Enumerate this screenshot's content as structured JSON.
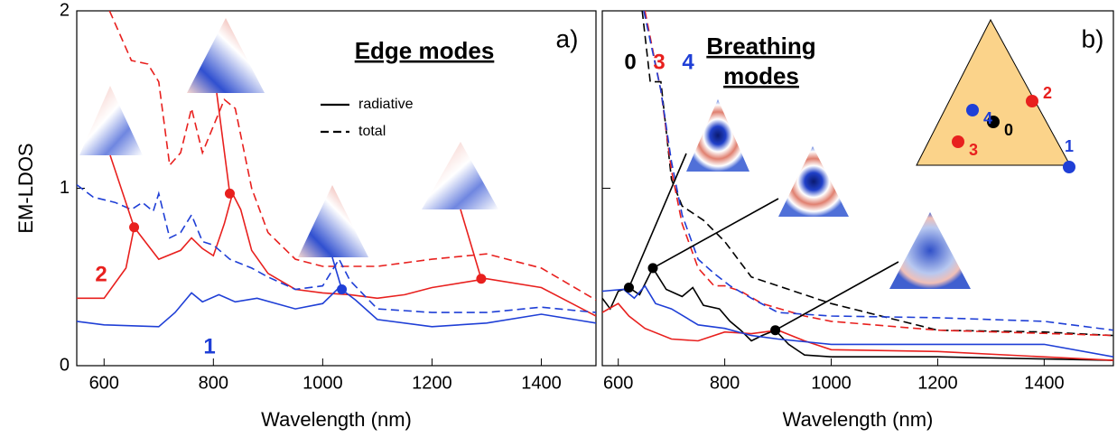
{
  "chart_data": [
    {
      "type": "line",
      "panel_label": "a)",
      "title": "Edge modes",
      "y_label": "EM-LDOS",
      "x_label": "Wavelength (nm)",
      "xlim": [
        550,
        1500
      ],
      "xticks": [
        600,
        800,
        1000,
        1200,
        1400
      ],
      "ylim": [
        0,
        2
      ],
      "yticks": [
        0,
        1,
        2
      ],
      "legend": [
        {
          "label": "radiative",
          "dash": "solid"
        },
        {
          "label": "total",
          "dash": "dashed"
        }
      ],
      "series": [
        {
          "color": "#e8201e",
          "dash": "solid",
          "x": [
            550,
            600,
            640,
            655,
            670,
            700,
            740,
            760,
            780,
            800,
            820,
            835,
            850,
            870,
            900,
            950,
            1000,
            1050,
            1100,
            1150,
            1200,
            1300,
            1400,
            1500
          ],
          "values": [
            0.38,
            0.38,
            0.55,
            0.78,
            0.72,
            0.6,
            0.65,
            0.72,
            0.66,
            0.62,
            0.8,
            0.97,
            0.88,
            0.65,
            0.52,
            0.43,
            0.41,
            0.4,
            0.38,
            0.4,
            0.44,
            0.49,
            0.44,
            0.28
          ]
        },
        {
          "color": "#e8201e",
          "dash": "dashed",
          "x": [
            610,
            650,
            680,
            700,
            720,
            740,
            760,
            780,
            800,
            820,
            840,
            870,
            900,
            950,
            1000,
            1050,
            1100,
            1200,
            1300,
            1400,
            1500
          ],
          "values": [
            2.0,
            1.72,
            1.7,
            1.6,
            1.13,
            1.2,
            1.45,
            1.2,
            1.35,
            1.5,
            1.45,
            1.0,
            0.75,
            0.6,
            0.56,
            0.56,
            0.56,
            0.6,
            0.63,
            0.55,
            0.37
          ]
        },
        {
          "color": "#1f3fd6",
          "dash": "dashed",
          "x": [
            550,
            580,
            620,
            650,
            670,
            690,
            700,
            720,
            740,
            760,
            780,
            800,
            830,
            870,
            900,
            950,
            1000,
            1030,
            1050,
            1100,
            1200,
            1300,
            1400,
            1500
          ],
          "values": [
            1.02,
            0.95,
            0.92,
            0.88,
            0.92,
            0.87,
            0.97,
            0.72,
            0.75,
            0.85,
            0.7,
            0.68,
            0.6,
            0.55,
            0.5,
            0.43,
            0.45,
            0.6,
            0.48,
            0.32,
            0.3,
            0.3,
            0.33,
            0.3
          ]
        },
        {
          "color": "#1f3fd6",
          "dash": "solid",
          "x": [
            550,
            600,
            700,
            730,
            760,
            780,
            810,
            840,
            880,
            950,
            1000,
            1030,
            1060,
            1100,
            1200,
            1300,
            1400,
            1500
          ],
          "values": [
            0.25,
            0.23,
            0.22,
            0.3,
            0.41,
            0.36,
            0.4,
            0.36,
            0.38,
            0.32,
            0.35,
            0.44,
            0.37,
            0.26,
            0.22,
            0.24,
            0.29,
            0.24
          ]
        }
      ],
      "curve_labels": [
        {
          "text": "2",
          "color": "#e8201e"
        },
        {
          "text": "1",
          "color": "#1f3fd6"
        }
      ],
      "markers": [
        {
          "x": 655,
          "y": 0.78,
          "color": "#e8201e"
        },
        {
          "x": 830,
          "y": 0.97,
          "color": "#e8201e"
        },
        {
          "x": 1290,
          "y": 0.49,
          "color": "#e8201e"
        },
        {
          "x": 1035,
          "y": 0.43,
          "color": "#1f3fd6"
        }
      ]
    },
    {
      "type": "line",
      "panel_label": "b)",
      "title": "Breathing",
      "subtitle": "modes",
      "x_label": "Wavelength (nm)",
      "xlim": [
        570,
        1530
      ],
      "xticks": [
        600,
        800,
        1000,
        1200,
        1400
      ],
      "ylim": [
        0,
        2
      ],
      "yticks": [
        0,
        1,
        2
      ],
      "series": [
        {
          "color": "#000000",
          "dash": "solid",
          "x": [
            570,
            585,
            600,
            620,
            640,
            665,
            690,
            720,
            740,
            760,
            790,
            810,
            830,
            850,
            870,
            895,
            920,
            950,
            1000,
            1200,
            1530
          ],
          "values": [
            0.38,
            0.32,
            0.42,
            0.44,
            0.4,
            0.55,
            0.43,
            0.39,
            0.44,
            0.34,
            0.32,
            0.25,
            0.2,
            0.14,
            0.17,
            0.2,
            0.12,
            0.06,
            0.05,
            0.05,
            0.03
          ]
        },
        {
          "color": "#e8201e",
          "dash": "solid",
          "x": [
            570,
            600,
            620,
            650,
            700,
            750,
            800,
            850,
            900,
            950,
            1000,
            1200,
            1530
          ],
          "values": [
            0.3,
            0.35,
            0.28,
            0.21,
            0.15,
            0.14,
            0.19,
            0.18,
            0.2,
            0.14,
            0.09,
            0.08,
            0.03
          ]
        },
        {
          "color": "#1f3fd6",
          "dash": "solid",
          "x": [
            570,
            610,
            630,
            650,
            670,
            700,
            750,
            800,
            850,
            900,
            1000,
            1200,
            1400,
            1530
          ],
          "values": [
            0.42,
            0.43,
            0.38,
            0.45,
            0.35,
            0.32,
            0.23,
            0.21,
            0.17,
            0.15,
            0.12,
            0.12,
            0.12,
            0.05
          ]
        },
        {
          "color": "#000000",
          "dash": "dashed",
          "x": [
            645,
            660,
            680,
            700,
            720,
            760,
            800,
            850,
            900,
            1000,
            1200,
            1400,
            1530
          ],
          "values": [
            2.0,
            1.6,
            1.6,
            1.05,
            0.9,
            0.82,
            0.7,
            0.5,
            0.45,
            0.35,
            0.2,
            0.19,
            0.17
          ]
        },
        {
          "color": "#e8201e",
          "dash": "dashed",
          "x": [
            650,
            680,
            700,
            720,
            750,
            780,
            800,
            830,
            870,
            950,
            1000,
            1200,
            1530
          ],
          "values": [
            2.0,
            1.55,
            1.1,
            0.8,
            0.55,
            0.45,
            0.45,
            0.42,
            0.35,
            0.28,
            0.25,
            0.2,
            0.17
          ]
        },
        {
          "color": "#1f3fd6",
          "dash": "dashed",
          "x": [
            648,
            680,
            700,
            720,
            750,
            780,
            810,
            850,
            900,
            1000,
            1200,
            1400,
            1530
          ],
          "values": [
            2.0,
            1.55,
            1.15,
            0.85,
            0.6,
            0.52,
            0.45,
            0.38,
            0.3,
            0.28,
            0.27,
            0.25,
            0.2
          ]
        }
      ],
      "curve_labels": [
        {
          "text": "0",
          "color": "#000000"
        },
        {
          "text": "3",
          "color": "#e8201e"
        },
        {
          "text": "4",
          "color": "#1f3fd6"
        }
      ],
      "markers": [
        {
          "x": 620,
          "y": 0.44,
          "color": "#000000"
        },
        {
          "x": 665,
          "y": 0.55,
          "color": "#000000"
        },
        {
          "x": 895,
          "y": 0.2,
          "color": "#000000"
        }
      ],
      "inset_points": [
        {
          "label": "0",
          "color": "#000000"
        },
        {
          "label": "1",
          "color": "#1f3fd6"
        },
        {
          "label": "2",
          "color": "#e8201e"
        },
        {
          "label": "3",
          "color": "#e8201e"
        },
        {
          "label": "4",
          "color": "#1f3fd6"
        }
      ]
    }
  ]
}
